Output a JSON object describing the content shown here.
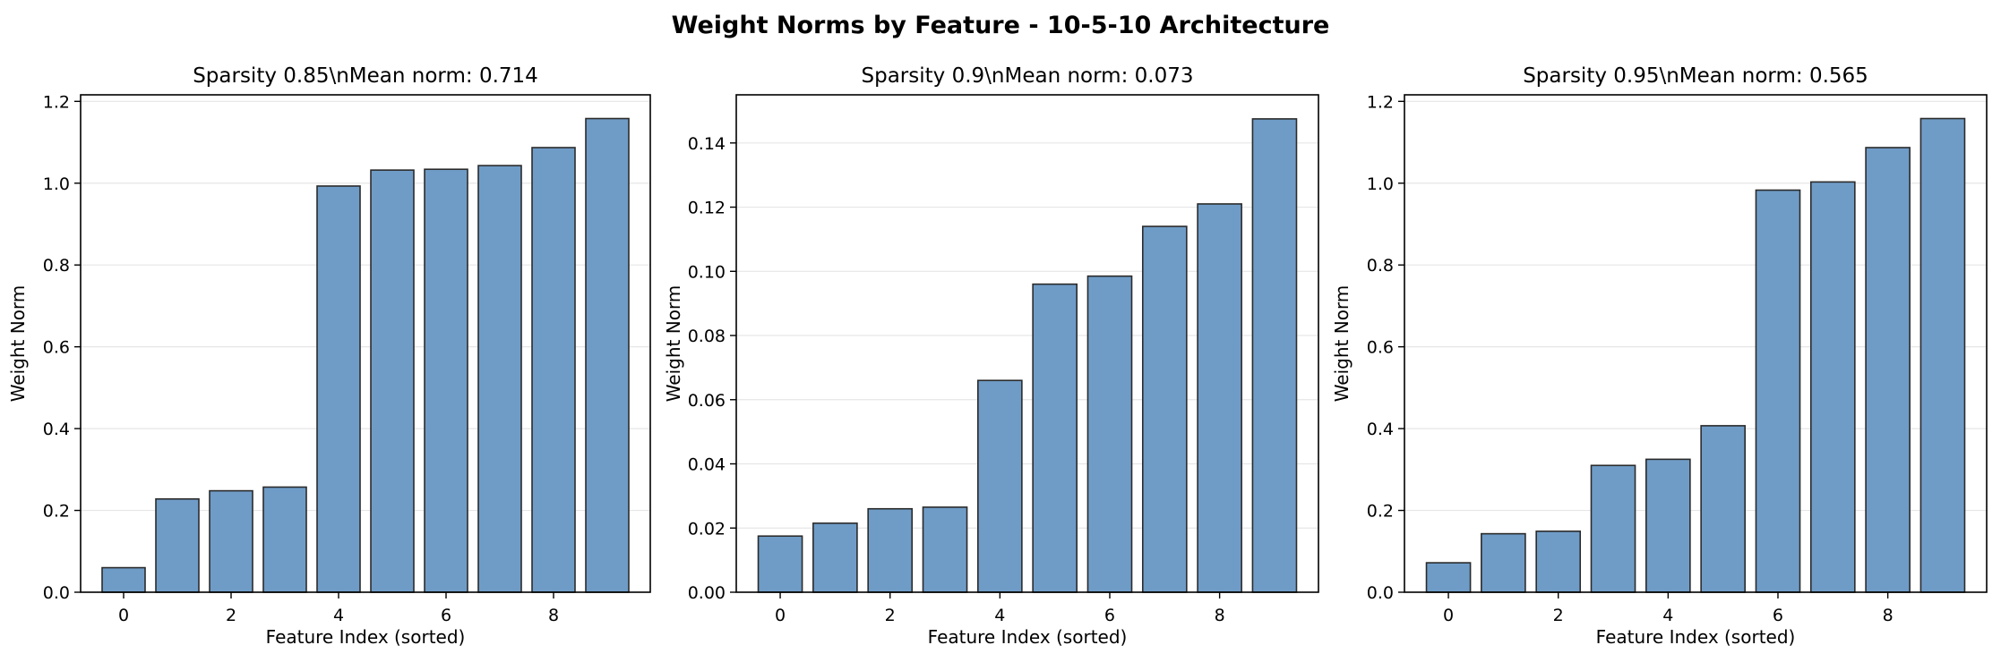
{
  "figure": {
    "suptitle": "Weight Norms by Feature - 10-5-10 Architecture"
  },
  "colors": {
    "bar_fill": "#6f9cc7",
    "bar_edge": "#2b2b2b",
    "grid": "#e6e6e6",
    "axis": "#000000"
  },
  "chart_data": [
    {
      "type": "bar",
      "title": "Sparsity 0.85\\nMean norm: 0.714",
      "xlabel": "Feature Index (sorted)",
      "ylabel": "Weight Norm",
      "categories": [
        0,
        1,
        2,
        3,
        4,
        5,
        6,
        7,
        8,
        9
      ],
      "values": [
        0.06,
        0.228,
        0.248,
        0.257,
        0.993,
        1.032,
        1.034,
        1.043,
        1.087,
        1.158
      ],
      "xticks": [
        0,
        2,
        4,
        6,
        8
      ],
      "yticks": [
        0.0,
        0.2,
        0.4,
        0.6,
        0.8,
        1.0,
        1.2
      ],
      "ytick_labels": [
        "0.0",
        "0.2",
        "0.4",
        "0.6",
        "0.8",
        "1.0",
        "1.2"
      ],
      "ylim": [
        0,
        1.216
      ],
      "xlim": [
        -0.8,
        9.8
      ],
      "grid": "y"
    },
    {
      "type": "bar",
      "title": "Sparsity 0.9\\nMean norm: 0.073",
      "xlabel": "Feature Index (sorted)",
      "ylabel": "Weight Norm",
      "categories": [
        0,
        1,
        2,
        3,
        4,
        5,
        6,
        7,
        8,
        9
      ],
      "values": [
        0.0175,
        0.0215,
        0.026,
        0.0265,
        0.066,
        0.096,
        0.0985,
        0.114,
        0.121,
        0.1475
      ],
      "xticks": [
        0,
        2,
        4,
        6,
        8
      ],
      "yticks": [
        0.0,
        0.02,
        0.04,
        0.06,
        0.08,
        0.1,
        0.12,
        0.14
      ],
      "ytick_labels": [
        "0.00",
        "0.02",
        "0.04",
        "0.06",
        "0.08",
        "0.10",
        "0.12",
        "0.14"
      ],
      "ylim": [
        0,
        0.155
      ],
      "xlim": [
        -0.8,
        9.8
      ],
      "grid": "y"
    },
    {
      "type": "bar",
      "title": "Sparsity 0.95\\nMean norm: 0.565",
      "xlabel": "Feature Index (sorted)",
      "ylabel": "Weight Norm",
      "categories": [
        0,
        1,
        2,
        3,
        4,
        5,
        6,
        7,
        8,
        9
      ],
      "values": [
        0.072,
        0.143,
        0.149,
        0.31,
        0.325,
        0.407,
        0.983,
        1.003,
        1.087,
        1.158
      ],
      "xticks": [
        0,
        2,
        4,
        6,
        8
      ],
      "yticks": [
        0.0,
        0.2,
        0.4,
        0.6,
        0.8,
        1.0,
        1.2
      ],
      "ytick_labels": [
        "0.0",
        "0.2",
        "0.4",
        "0.6",
        "0.8",
        "1.0",
        "1.2"
      ],
      "ylim": [
        0,
        1.216
      ],
      "xlim": [
        -0.8,
        9.8
      ],
      "grid": "y"
    }
  ]
}
